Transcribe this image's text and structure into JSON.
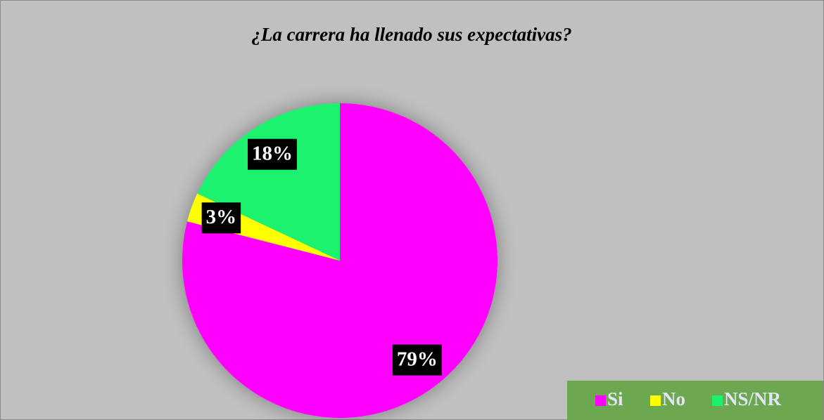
{
  "chart_data": {
    "type": "pie",
    "title": "¿La carrera ha llenado sus expectativas?",
    "categories": [
      "Si",
      "No",
      "NS/NR"
    ],
    "values": [
      79,
      3,
      18
    ],
    "value_labels": [
      "79%",
      "3%",
      "18%"
    ],
    "colors": [
      "#ff00ff",
      "#ffff00",
      "#1af26e"
    ],
    "legend": "bottom-right"
  }
}
